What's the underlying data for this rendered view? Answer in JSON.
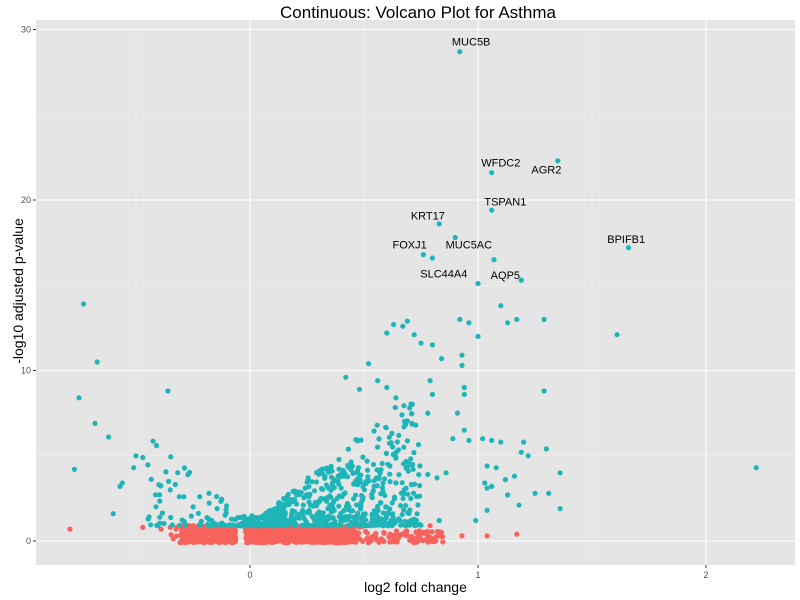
{
  "chart_data": {
    "type": "scatter",
    "title": "Continuous: Volcano Plot for Asthma",
    "xlabel": "log2 fold change",
    "ylabel": "-log10 adjusted p-value",
    "xlim": [
      -0.93,
      2.4
    ],
    "ylim": [
      -1.4,
      30.6
    ],
    "x_ticks": [
      0,
      1,
      2
    ],
    "y_ticks": [
      0,
      10,
      20,
      30
    ],
    "grid": true,
    "legend": "none",
    "colors": {
      "significant": "#1fb5b8",
      "not_significant": "#f8625c",
      "panel": "#e5e5e5",
      "grid": "#ffffff"
    },
    "labeled_points": [
      {
        "gene": "MUC5B",
        "x": 0.92,
        "y": 28.7,
        "lx": 0.97,
        "ly": 29.3
      },
      {
        "gene": "AGR2",
        "x": 1.35,
        "y": 22.3,
        "lx": 1.3,
        "ly": 21.8
      },
      {
        "gene": "WFDC2",
        "x": 1.06,
        "y": 21.6,
        "lx": 1.1,
        "ly": 22.2
      },
      {
        "gene": "TSPAN1",
        "x": 1.06,
        "y": 19.4,
        "lx": 1.12,
        "ly": 19.9
      },
      {
        "gene": "KRT17",
        "x": 0.83,
        "y": 18.6,
        "lx": 0.78,
        "ly": 19.1
      },
      {
        "gene": "MUC5AC",
        "x": 0.9,
        "y": 17.8,
        "lx": 0.96,
        "ly": 17.4
      },
      {
        "gene": "BPIFB1",
        "x": 1.66,
        "y": 17.2,
        "lx": 1.65,
        "ly": 17.7
      },
      {
        "gene": "FOXJ1",
        "x": 0.76,
        "y": 16.8,
        "lx": 0.7,
        "ly": 17.4
      },
      {
        "gene": "SLC44A4",
        "x": 0.8,
        "y": 16.6,
        "lx": 0.85,
        "ly": 15.7
      },
      {
        "gene": "AQP5",
        "x": 1.07,
        "y": 16.5,
        "lx": 1.12,
        "ly": 15.6
      }
    ],
    "significant_points": [
      [
        1.0,
        15.1
      ],
      [
        1.19,
        15.3
      ],
      [
        1.1,
        13.8
      ],
      [
        1.13,
        12.8
      ],
      [
        1.17,
        13.0
      ],
      [
        1.29,
        13.0
      ],
      [
        1.61,
        12.1
      ],
      [
        1.29,
        8.8
      ],
      [
        2.22,
        4.3
      ],
      [
        1.36,
        4.0
      ],
      [
        1.36,
        1.9
      ],
      [
        -0.73,
        13.9
      ],
      [
        -0.67,
        10.5
      ],
      [
        -0.75,
        8.4
      ],
      [
        -0.68,
        6.9
      ],
      [
        -0.62,
        6.1
      ],
      [
        -0.36,
        8.8
      ],
      [
        -0.77,
        4.2
      ],
      [
        -0.41,
        5.6
      ],
      [
        -0.51,
        4.3
      ],
      [
        -0.5,
        5.0
      ],
      [
        -0.47,
        4.9
      ],
      [
        -0.56,
        3.4
      ],
      [
        -0.57,
        3.2
      ],
      [
        -0.6,
        1.6
      ],
      [
        -0.4,
        3.3
      ],
      [
        -0.35,
        3.0
      ],
      [
        -0.31,
        2.6
      ],
      [
        -0.29,
        2.6
      ],
      [
        -0.18,
        2.8
      ],
      [
        -0.22,
        2.6
      ],
      [
        0.69,
        12.9
      ],
      [
        0.67,
        12.6
      ],
      [
        0.63,
        12.7
      ],
      [
        0.72,
        12.1
      ],
      [
        0.6,
        12.2
      ],
      [
        0.75,
        11.6
      ],
      [
        0.8,
        11.5
      ],
      [
        0.84,
        10.7
      ],
      [
        0.79,
        9.4
      ],
      [
        0.8,
        8.6
      ],
      [
        0.92,
        13.0
      ],
      [
        0.96,
        12.8
      ],
      [
        1.0,
        12.0
      ],
      [
        0.93,
        10.9
      ],
      [
        0.93,
        10.3
      ],
      [
        0.94,
        9.0
      ],
      [
        0.94,
        8.6
      ],
      [
        0.91,
        7.5
      ],
      [
        0.94,
        6.5
      ],
      [
        0.96,
        5.9
      ],
      [
        0.52,
        10.4
      ],
      [
        0.6,
        9.0
      ],
      [
        0.48,
        8.9
      ],
      [
        0.42,
        9.6
      ],
      [
        0.56,
        9.4
      ],
      [
        0.64,
        8.4
      ],
      [
        0.7,
        7.8
      ],
      [
        0.78,
        7.5
      ],
      [
        0.71,
        6.9
      ],
      [
        0.89,
        6.0
      ],
      [
        1.02,
        6.0
      ],
      [
        1.06,
        5.9
      ],
      [
        1.1,
        5.8
      ],
      [
        1.2,
        5.8
      ],
      [
        1.19,
        5.2
      ],
      [
        1.22,
        5.0
      ],
      [
        1.04,
        4.4
      ],
      [
        1.08,
        4.3
      ],
      [
        1.16,
        3.8
      ],
      [
        1.12,
        3.6
      ],
      [
        0.86,
        4.0
      ],
      [
        0.78,
        3.9
      ],
      [
        0.82,
        3.7
      ],
      [
        1.04,
        3.1
      ],
      [
        1.06,
        3.2
      ],
      [
        1.13,
        2.7
      ],
      [
        1.25,
        2.8
      ],
      [
        1.04,
        1.8
      ],
      [
        0.99,
        1.2
      ],
      [
        0.83,
        1.2
      ],
      [
        1.3,
        5.4
      ],
      [
        1.31,
        2.8
      ],
      [
        1.18,
        2.1
      ],
      [
        1.03,
        3.4
      ]
    ],
    "dense_cluster": {
      "significant_region": {
        "x": [
          -0.45,
          0.75
        ],
        "y": [
          0.9,
          9.0
        ],
        "peak_x": 0.25
      },
      "not_significant_region": {
        "x": [
          -0.35,
          0.9
        ],
        "y": [
          -0.1,
          1.0
        ]
      },
      "not_significant_outliers": [
        [
          -0.79,
          0.7
        ],
        [
          -0.47,
          0.8
        ],
        [
          -0.39,
          0.7
        ],
        [
          -0.35,
          0.8
        ],
        [
          0.7,
          1.0
        ],
        [
          0.79,
          0.9
        ],
        [
          0.84,
          0.5
        ],
        [
          0.93,
          0.3
        ],
        [
          1.04,
          0.3
        ],
        [
          1.17,
          0.4
        ]
      ]
    }
  }
}
